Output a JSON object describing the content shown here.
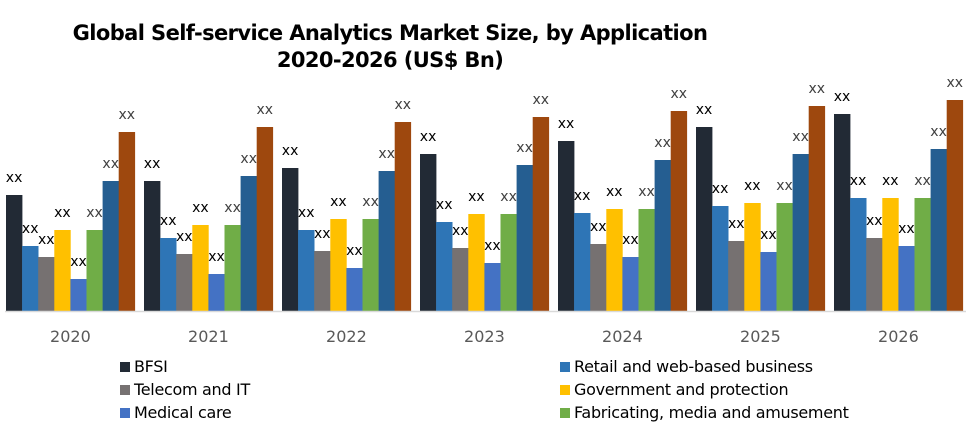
{
  "chart_data": {
    "type": "bar",
    "title": "Global Self-service Analytics Market  Size, by Application",
    "subtitle": "2020-2026 (US$ Bn)",
    "xlabel": "",
    "ylabel": "",
    "categories": [
      "2020",
      "2021",
      "2022",
      "2023",
      "2024",
      "2025",
      "2026"
    ],
    "ylim": [
      0,
      220
    ],
    "grid": false,
    "value_label_text": "xx",
    "legend_position": "bottom",
    "series": [
      {
        "name": "BFSI",
        "color": "#222a35",
        "values": [
          116,
          130,
          143,
          157,
          170,
          184,
          197
        ]
      },
      {
        "name": "Retail and web-based business",
        "color": "#2e75b6",
        "values": [
          65,
          73,
          81,
          89,
          98,
          105,
          113
        ]
      },
      {
        "name": "Telecom and IT",
        "color": "#767171",
        "values": [
          54,
          57,
          60,
          63,
          67,
          70,
          73
        ]
      },
      {
        "name": "Government and protection",
        "color": "#ffc000",
        "values": [
          81,
          86,
          92,
          97,
          102,
          108,
          113
        ]
      },
      {
        "name": "Medical care",
        "color": "#4472c4",
        "values": [
          32,
          37,
          43,
          48,
          54,
          59,
          65
        ]
      },
      {
        "name": "Fabricating, media and amusement",
        "color": "#70ad47",
        "values": [
          81,
          86,
          92,
          97,
          102,
          108,
          113
        ]
      },
      {
        "name": "",
        "color": "#255e91",
        "values": [
          130,
          135,
          140,
          146,
          151,
          157,
          162
        ]
      },
      {
        "name": "",
        "color": "#9e480e",
        "values": [
          179,
          184,
          189,
          194,
          200,
          205,
          211
        ]
      }
    ],
    "legend": [
      {
        "label": "BFSI",
        "color": "#222a35"
      },
      {
        "label": "Retail and web-based business",
        "color": "#2e75b6"
      },
      {
        "label": "Telecom and IT",
        "color": "#767171"
      },
      {
        "label": "Government and protection",
        "color": "#ffc000"
      },
      {
        "label": "Medical care",
        "color": "#4472c4"
      },
      {
        "label": "Fabricating, media and amusement",
        "color": "#70ad47"
      }
    ]
  }
}
